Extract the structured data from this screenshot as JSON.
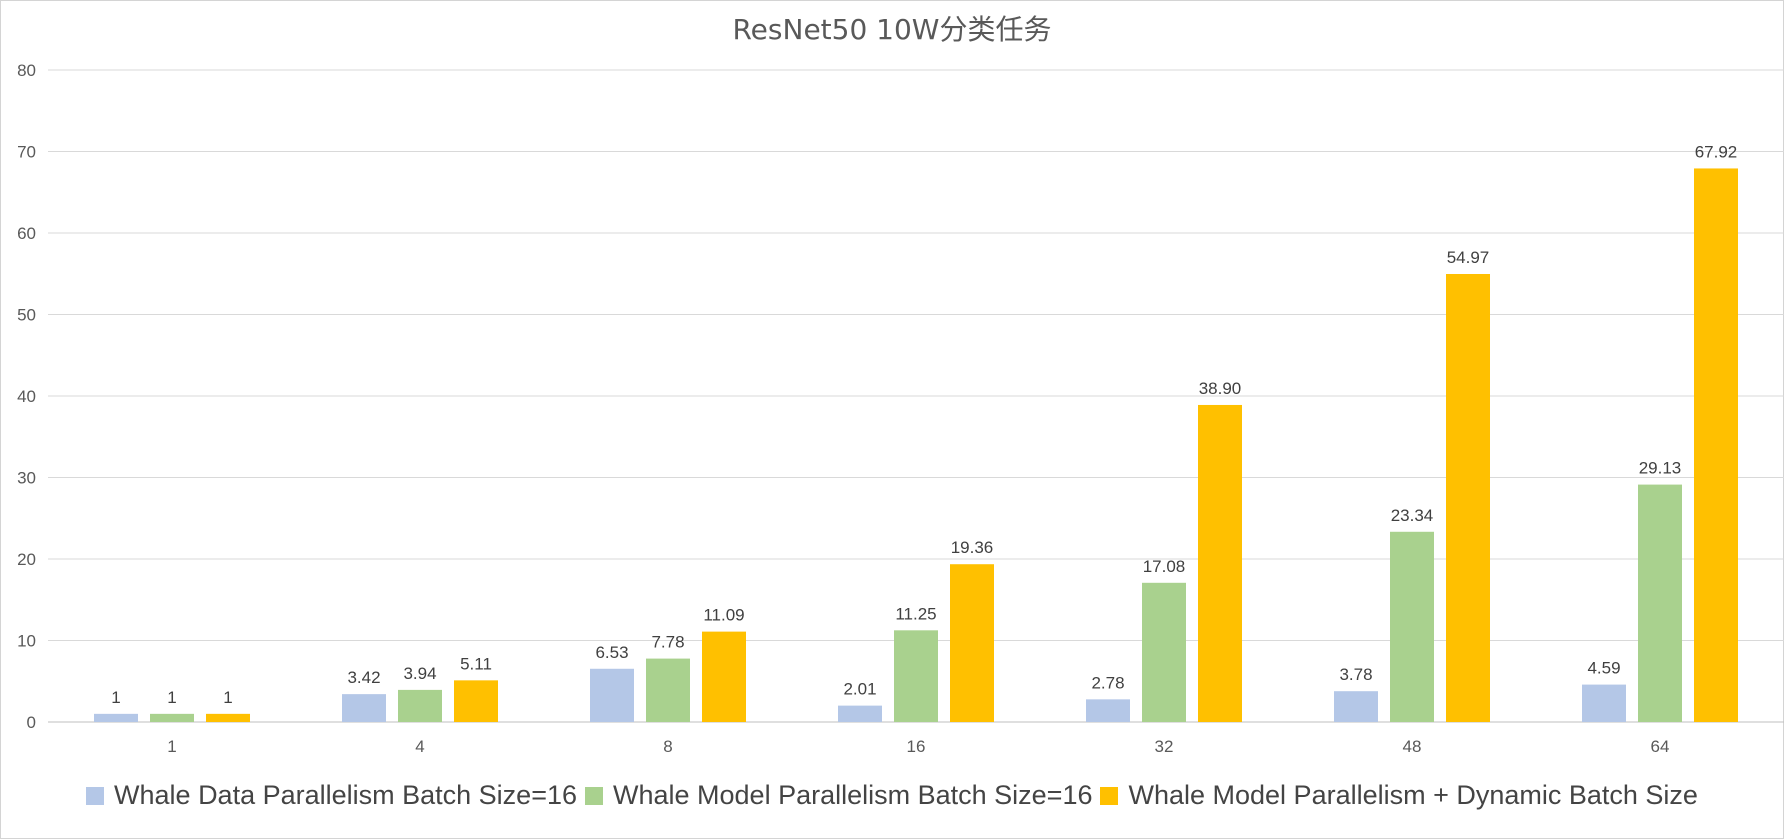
{
  "chart_data": {
    "type": "bar",
    "title": "ResNet50 10W分类任务",
    "xlabel": "",
    "ylabel": "",
    "ylim": [
      0,
      80
    ],
    "yticks": [
      0,
      10,
      20,
      30,
      40,
      50,
      60,
      70,
      80
    ],
    "grid": true,
    "legend_position": "bottom",
    "categories": [
      "1",
      "4",
      "8",
      "16",
      "32",
      "48",
      "64"
    ],
    "series": [
      {
        "name": "Whale Data Parallelism Batch Size=16",
        "color": "#b4c7e7",
        "values": [
          1,
          3.42,
          6.53,
          2.01,
          2.78,
          3.78,
          4.59
        ],
        "labels": [
          "1",
          "3.42",
          "6.53",
          "2.01",
          "2.78",
          "3.78",
          "4.59"
        ]
      },
      {
        "name": "Whale Model Parallelism Batch Size=16",
        "color": "#a9d18e",
        "values": [
          1,
          3.94,
          7.78,
          11.25,
          17.08,
          23.34,
          29.13
        ],
        "labels": [
          "1",
          "3.94",
          "7.78",
          "11.25",
          "17.08",
          "23.34",
          "29.13"
        ]
      },
      {
        "name": "Whale Model Parallelism + Dynamic Batch Size",
        "color": "#ffc000",
        "values": [
          1,
          5.11,
          11.09,
          19.36,
          38.9,
          54.97,
          67.92
        ],
        "labels": [
          "1",
          "5.11",
          "11.09",
          "19.36",
          "38.90",
          "54.97",
          "67.92"
        ]
      }
    ]
  }
}
